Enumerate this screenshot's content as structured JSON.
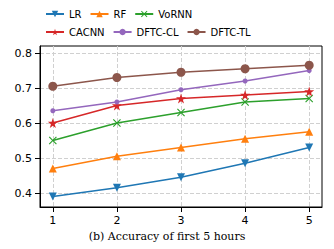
{
  "chart_data": {
    "type": "line",
    "title": "(b) Accuracy of first 5 hours",
    "x": [
      1,
      2,
      3,
      4,
      5
    ],
    "xlim": [
      0.8,
      5.2
    ],
    "xticks": [
      1,
      2,
      3,
      4,
      5
    ],
    "ylim": [
      0.36,
      0.82
    ],
    "yticks": [
      0.4,
      0.5,
      0.6,
      0.7,
      0.8
    ],
    "grid": true,
    "legend": "upper left",
    "series": [
      {
        "name": "LR",
        "color": "#1f77b4",
        "marker": "triangle-down",
        "values": [
          0.39,
          0.415,
          0.445,
          0.485,
          0.53
        ]
      },
      {
        "name": "RF",
        "color": "#ff7f0e",
        "marker": "triangle-up",
        "values": [
          0.47,
          0.505,
          0.53,
          0.555,
          0.575
        ]
      },
      {
        "name": "VoRNN",
        "color": "#2ca02c",
        "marker": "x",
        "values": [
          0.55,
          0.6,
          0.63,
          0.66,
          0.67
        ]
      },
      {
        "name": "CACNN",
        "color": "#d62728",
        "marker": "star",
        "values": [
          0.6,
          0.65,
          0.67,
          0.68,
          0.69
        ]
      },
      {
        "name": "DFTC-CL",
        "color": "#9467bd",
        "marker": "circle",
        "values": [
          0.635,
          0.66,
          0.695,
          0.72,
          0.75
        ]
      },
      {
        "name": "DFTC-TL",
        "color": "#8c564b",
        "marker": "big-circle",
        "values": [
          0.705,
          0.73,
          0.745,
          0.755,
          0.765
        ]
      }
    ]
  }
}
